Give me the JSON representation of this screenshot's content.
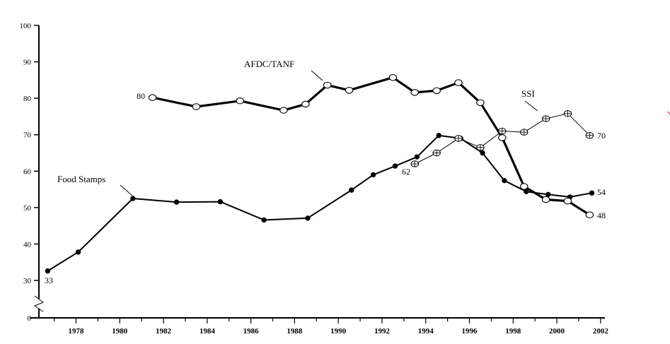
{
  "chart_data": {
    "type": "line",
    "title": "",
    "xlabel": "",
    "ylabel": "",
    "xlim": [
      1976.3,
      2002.2
    ],
    "ylim": [
      0,
      100
    ],
    "axis_break": "between 0 and 30 on the y-axis",
    "grid": false,
    "legend": "none (series labeled directly on the chart)",
    "x_ticks": [
      {
        "value": 1978,
        "label": "1978"
      },
      {
        "value": 1980,
        "label": "1980"
      },
      {
        "value": 1982,
        "label": "1982"
      },
      {
        "value": 1984,
        "label": "1984"
      },
      {
        "value": 1986,
        "label": "1986"
      },
      {
        "value": 1988,
        "label": "1988"
      },
      {
        "value": 1990,
        "label": "1990"
      },
      {
        "value": 1992,
        "label": "1992"
      },
      {
        "value": 1994,
        "label": "1994"
      },
      {
        "value": 1996,
        "label": "1996"
      },
      {
        "value": 1998,
        "label": "1998"
      },
      {
        "value": 2000,
        "label": "2000"
      },
      {
        "value": 2002,
        "label": "2002"
      }
    ],
    "y_ticks": [
      {
        "value": 0,
        "label": "0"
      },
      {
        "value": 30,
        "label": "30"
      },
      {
        "value": 40,
        "label": "40"
      },
      {
        "value": 50,
        "label": "50"
      },
      {
        "value": 60,
        "label": "60"
      },
      {
        "value": 70,
        "label": "70"
      },
      {
        "value": 80,
        "label": "80"
      },
      {
        "value": 90,
        "label": "90"
      },
      {
        "value": 100,
        "label": "100"
      }
    ],
    "series": [
      {
        "name": "AFDC/TANF",
        "marker": "open-circle",
        "line_weight": "heavy",
        "color": "#000000",
        "x": [
          1981.5,
          1983.5,
          1985.5,
          1987.5,
          1988.5,
          1989.5,
          1990.5,
          1992.5,
          1993.5,
          1994.5,
          1995.5,
          1996.5,
          1997.5,
          1998.5,
          1999.5,
          2000.5,
          2001.5
        ],
        "y": [
          80.2,
          77.7,
          79.3,
          76.7,
          78.4,
          83.6,
          82.2,
          85.7,
          81.6,
          82.1,
          84.3,
          78.8,
          69.2,
          55.8,
          52.2,
          51.8,
          48
        ]
      },
      {
        "name": "Food Stamps",
        "marker": "filled-circle",
        "line_weight": "medium",
        "color": "#000000",
        "x": [
          1976.7,
          1978.1,
          1980.6,
          1982.6,
          1984.6,
          1986.6,
          1988.6,
          1990.6,
          1991.6,
          1992.6,
          1993.6,
          1994.6,
          1995.6,
          1996.6,
          1997.6,
          1998.6,
          1999.6,
          2000.6,
          2001.6
        ],
        "y": [
          32.6,
          37.8,
          52.5,
          51.5,
          51.6,
          46.6,
          47.1,
          54.8,
          59,
          61.4,
          63.9,
          69.8,
          69,
          65,
          57.4,
          54.4,
          53.6,
          52.9,
          54
        ]
      },
      {
        "name": "SSI",
        "marker": "crossed-circle",
        "line_weight": "thin",
        "color": "#000000",
        "x": [
          1993.5,
          1994.5,
          1995.5,
          1996.5,
          1997.5,
          1998.5,
          1999.5,
          2000.5,
          2001.5
        ],
        "y": [
          62,
          65,
          69,
          66.5,
          71,
          70.7,
          74.4,
          75.8,
          69.8
        ]
      }
    ],
    "annotations": [
      {
        "text": "AFDC/TANF",
        "series": "AFDC/TANF",
        "role": "series-label"
      },
      {
        "text": "SSI",
        "series": "SSI",
        "role": "series-label"
      },
      {
        "text": "Food Stamps",
        "series": "Food Stamps",
        "role": "series-label"
      },
      {
        "text": "80",
        "series": "AFDC/TANF",
        "role": "start-value"
      },
      {
        "text": "33",
        "series": "Food Stamps",
        "role": "start-value"
      },
      {
        "text": "62",
        "series": "SSI",
        "role": "start-value"
      },
      {
        "text": "70",
        "series": "SSI",
        "role": "end-value"
      },
      {
        "text": "54",
        "series": "Food Stamps",
        "role": "end-value"
      },
      {
        "text": "48",
        "series": "AFDC/TANF",
        "role": "end-value"
      }
    ]
  }
}
